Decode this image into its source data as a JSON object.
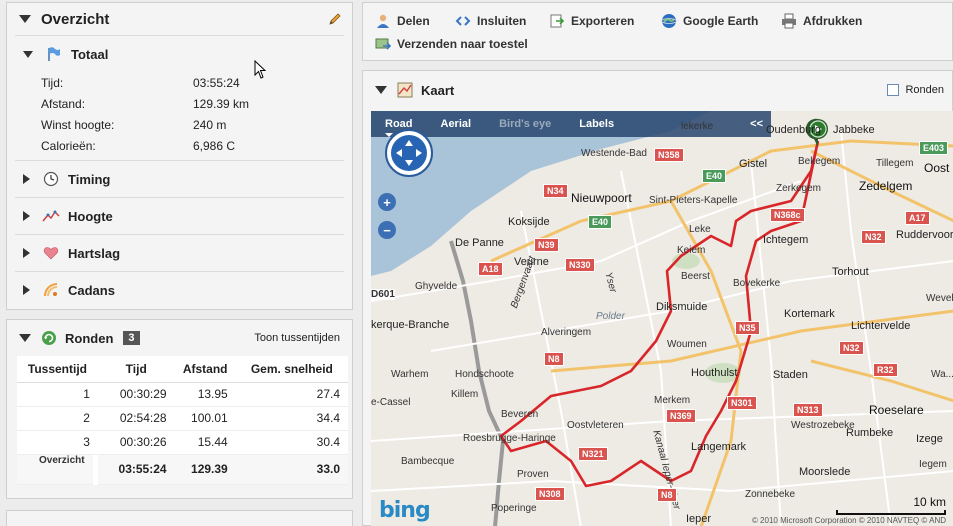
{
  "overzicht": {
    "title": "Overzicht",
    "totaal": {
      "label": "Totaal",
      "rows": [
        {
          "key": "Tijd:",
          "value": "03:55:24"
        },
        {
          "key": "Afstand:",
          "value": "129.39 km"
        },
        {
          "key": "Winst hoogte:",
          "value": "240 m"
        },
        {
          "key": "Calorieën:",
          "value": "6,986 C"
        }
      ]
    },
    "sections": [
      {
        "label": "Timing"
      },
      {
        "label": "Hoogte"
      },
      {
        "label": "Hartslag"
      },
      {
        "label": "Cadans"
      }
    ]
  },
  "ronden": {
    "title": "Ronden",
    "count": "3",
    "toon_label": "Toon tussentijden",
    "headers": [
      "Tussentijd",
      "Tijd",
      "Afstand",
      "Gem. snelheid"
    ],
    "rows": [
      [
        "1",
        "00:30:29",
        "13.95",
        "27.4"
      ],
      [
        "2",
        "02:54:28",
        "100.01",
        "34.4"
      ],
      [
        "3",
        "00:30:26",
        "15.44",
        "30.4"
      ]
    ],
    "summary": [
      "Overzicht",
      "03:55:24",
      "129.39",
      "33.0"
    ]
  },
  "toolbar": {
    "delen": "Delen",
    "insluiten": "Insluiten",
    "exporteren": "Exporteren",
    "google_earth": "Google Earth",
    "afdrukken": "Afdrukken",
    "verzenden": "Verzenden naar toestel"
  },
  "kaart": {
    "title": "Kaart",
    "ronden_checkbox": "Ronden",
    "mapbar": {
      "road": "Road",
      "aerial": "Aerial",
      "birds_eye": "Bird's eye",
      "labels": "Labels",
      "collapse": "<<"
    },
    "places": {
      "oudenburg": "Oudenburg",
      "jabbeke": "Jabbeke",
      "westende": "Westende-Bad",
      "gistel": "Gistel",
      "bekegem": "Bekegem",
      "zedelgem": "Zedelgem",
      "tillegem": "Tillegem",
      "oost": "Oost",
      "nieuwpoort": "Nieuwpoort",
      "spk": "Sint-Pieters-Kapelle",
      "zerkegem": "Zerkegem",
      "koksijde": "Koksijde",
      "depanne": "De Panne",
      "leke": "Leke",
      "ichtegem": "Ichtegem",
      "ruddervoorde": "Ruddervoorde",
      "veurne": "Veurne",
      "keiem": "Keiem",
      "beerst": "Beerst",
      "torhout": "Torhout",
      "ghyvelde": "Ghyvelde",
      "bovekerke": "Bovekerke",
      "bergenvaart": "Bergenvaart",
      "diksmuide": "Diksmuide",
      "kortemark": "Kortemark",
      "wevelgem": "Wevelgem",
      "kerque": "kerque-Branche",
      "alveringem": "Alveringem",
      "lichtervelde": "Lichtervelde",
      "woumen": "Woumen",
      "warhem": "Warhem",
      "hondschoote": "Hondschoote",
      "houthulst": "Houthulst",
      "staden": "Staden",
      "killem": "Killem",
      "casselle": "e-Cassel",
      "merkem": "Merkem",
      "roeselare": "Roeselare",
      "beveren": "Beveren",
      "oostvleteren": "Oostvleteren",
      "westrozebeke": "Westrozebeke",
      "roesbrugge": "Roesbrugge-Haringe",
      "langemark": "Langemark",
      "rumbeke": "Rumbeke",
      "izegem": "Izege",
      "bambecque": "Bambecque",
      "proven": "Proven",
      "moorslede": "Moorslede",
      "zonnebeke": "Zonnebeke",
      "ieper": "Ieper",
      "poperinge": "Poperinge",
      "kanaal": "Kanaal Ieper-IJzer",
      "yser": "Yser",
      "polder": "Polder",
      "wekerke": "lekerke",
      "wamme": "Wa...",
      "bisseg": "Iegem"
    },
    "shields": {
      "n358": "N358",
      "e403": "E403",
      "e40a": "E40",
      "n34": "N34",
      "n368c": "N368c",
      "e40b": "E40",
      "a17": "A17",
      "n32a": "N32",
      "n39": "N39",
      "n330": "N330",
      "a18": "A18",
      "n35": "N35",
      "n8a": "N8",
      "n32b": "N32",
      "r32": "R32",
      "n369": "N369",
      "n301": "N301",
      "n313": "N313",
      "n321": "N321",
      "n308": "N308",
      "n8b": "N8",
      "d601": "D601"
    },
    "scale": "10 km",
    "copyright": "© 2010 Microsoft Corporation  © 2010 NAVTEQ  © AND",
    "bing": "bing"
  }
}
